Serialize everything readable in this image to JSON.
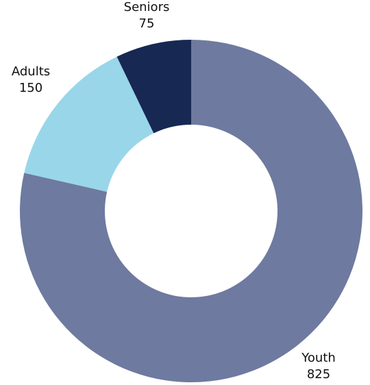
{
  "chart_data": {
    "type": "pie",
    "donut": true,
    "start_angle_deg": 0,
    "direction": "clockwise",
    "slices": [
      {
        "label": "Youth",
        "value": 825,
        "color": "#6e7a9f"
      },
      {
        "label": "Adults",
        "value": 150,
        "color": "#99d6ea"
      },
      {
        "label": "Seniors",
        "value": 75,
        "color": "#172852"
      }
    ],
    "data_labels": [
      "label",
      "value"
    ]
  }
}
